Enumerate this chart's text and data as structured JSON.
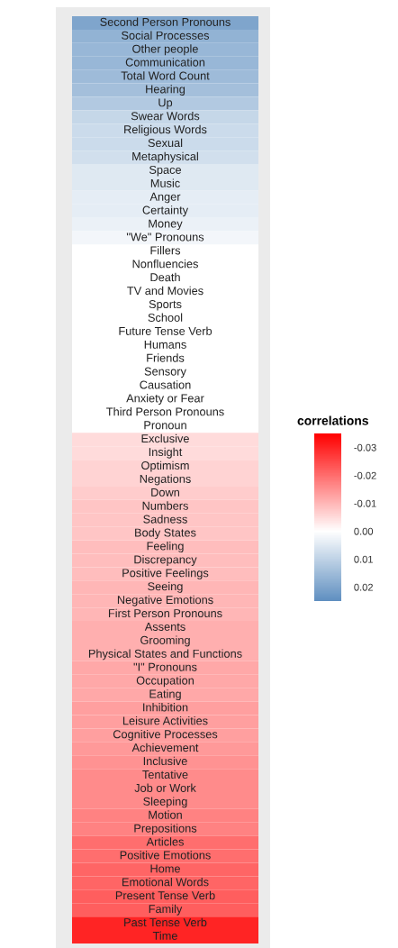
{
  "chart_data": {
    "type": "heatmap",
    "legend_title": "correlations",
    "clim": [
      -0.035,
      0.025
    ],
    "cticks": [
      -0.03,
      -0.02,
      -0.01,
      {
        "value": 0,
        "label": "0.00"
      },
      0.01,
      0.02
    ],
    "categories": [
      null
    ],
    "y_categories": [
      "Second Person Pronouns",
      "Social Processes",
      "Other people",
      "Communication",
      "Total Word Count",
      "Hearing",
      "Up",
      "Swear Words",
      "Religious Words",
      "Sexual",
      "Metaphysical",
      "Space",
      "Music",
      "Anger",
      "Certainty",
      "Money",
      "\"We\" Pronouns",
      "Fillers",
      "Nonfluencies",
      "Death",
      "TV and Movies",
      "Sports",
      "School",
      "Future Tense Verb",
      "Humans",
      "Friends",
      "Sensory",
      "Causation",
      "Anxiety or Fear",
      "Third Person Pronouns",
      "Pronoun",
      "Exclusive",
      "Insight",
      "Optimism",
      "Negations",
      "Down",
      "Numbers",
      "Sadness",
      "Body States",
      "Feeling",
      "Discrepancy",
      "Positive Feelings",
      "Seeing",
      "Negative Emotions",
      "First Person Pronouns",
      "Assents",
      "Grooming",
      "Physical States and Functions",
      "\"I\" Pronouns",
      "Occupation",
      "Eating",
      "Inhibition",
      "Leisure Activities",
      "Cognitive Processes",
      "Achievement",
      "Inclusive",
      "Tentative",
      "Job or Work",
      "Sleeping",
      "Motion",
      "Prepositions",
      "Articles",
      "Positive Emotions",
      "Home",
      "Emotional Words",
      "Present Tense Verb",
      "Family",
      "Past Tense Verb",
      "Time"
    ],
    "cells": [
      [
        0.02
      ],
      [
        0.017
      ],
      [
        0.016
      ],
      [
        0.016
      ],
      [
        0.015
      ],
      [
        0.014
      ],
      [
        0.012
      ],
      [
        0.009
      ],
      [
        0.008
      ],
      [
        0.008
      ],
      [
        0.007
      ],
      [
        0.005
      ],
      [
        0.005
      ],
      [
        0.004
      ],
      [
        0.004
      ],
      [
        0.003
      ],
      [
        0.002
      ],
      [
        0.0
      ],
      [
        0.0
      ],
      [
        0.0
      ],
      [
        0.0
      ],
      [
        0.0
      ],
      [
        0.0
      ],
      [
        0.0
      ],
      [
        0.0
      ],
      [
        0.0
      ],
      [
        0.0
      ],
      [
        0.0
      ],
      [
        0.0
      ],
      [
        0.0
      ],
      [
        0.0
      ],
      [
        -0.005
      ],
      [
        -0.005
      ],
      [
        -0.006
      ],
      [
        -0.006
      ],
      [
        -0.007
      ],
      [
        -0.008
      ],
      [
        -0.008
      ],
      [
        -0.008
      ],
      [
        -0.009
      ],
      [
        -0.009
      ],
      [
        -0.009
      ],
      [
        -0.01
      ],
      [
        -0.01
      ],
      [
        -0.01
      ],
      [
        -0.011
      ],
      [
        -0.011
      ],
      [
        -0.011
      ],
      [
        -0.012
      ],
      [
        -0.012
      ],
      [
        -0.012
      ],
      [
        -0.013
      ],
      [
        -0.013
      ],
      [
        -0.013
      ],
      [
        -0.014
      ],
      [
        -0.015
      ],
      [
        -0.016
      ],
      [
        -0.016
      ],
      [
        -0.016
      ],
      [
        -0.017
      ],
      [
        -0.017
      ],
      [
        -0.02
      ],
      [
        -0.02
      ],
      [
        -0.021
      ],
      [
        -0.021
      ],
      [
        -0.022
      ],
      [
        -0.022
      ],
      [
        -0.03
      ],
      [
        -0.03
      ]
    ]
  }
}
